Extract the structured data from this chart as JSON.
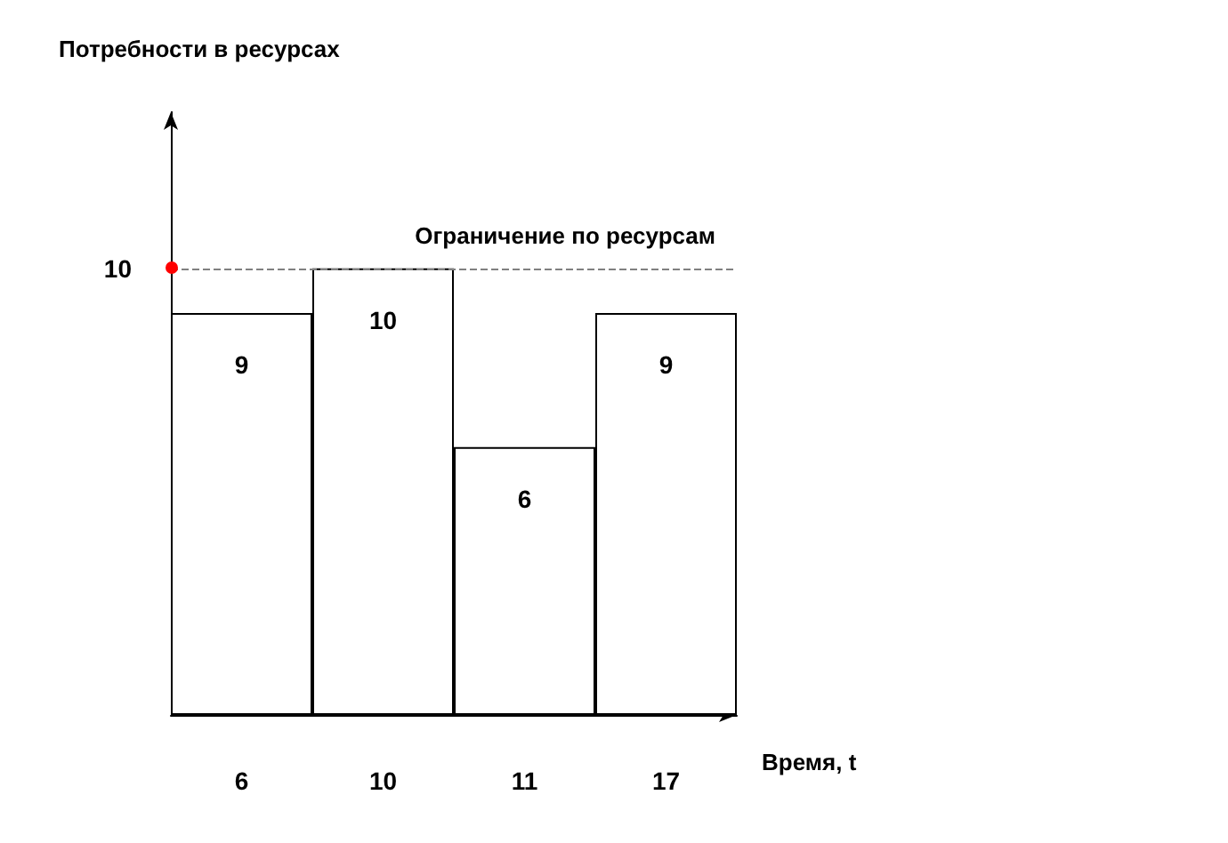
{
  "chart_data": {
    "type": "bar",
    "title": "Потребности в ресурсах",
    "xlabel": "Время, t",
    "categories": [
      "6",
      "10",
      "11",
      "17"
    ],
    "values": [
      9,
      10,
      6,
      9
    ],
    "color": "#ffffff",
    "ylim": [
      0,
      13.5
    ],
    "yticks": [
      10
    ],
    "data_labels": true,
    "ref_lines": [
      {
        "axis": "y",
        "value": 10,
        "label": "Ограничение по ресурсам",
        "color": "#808080",
        "line_style": "dashed"
      }
    ]
  }
}
